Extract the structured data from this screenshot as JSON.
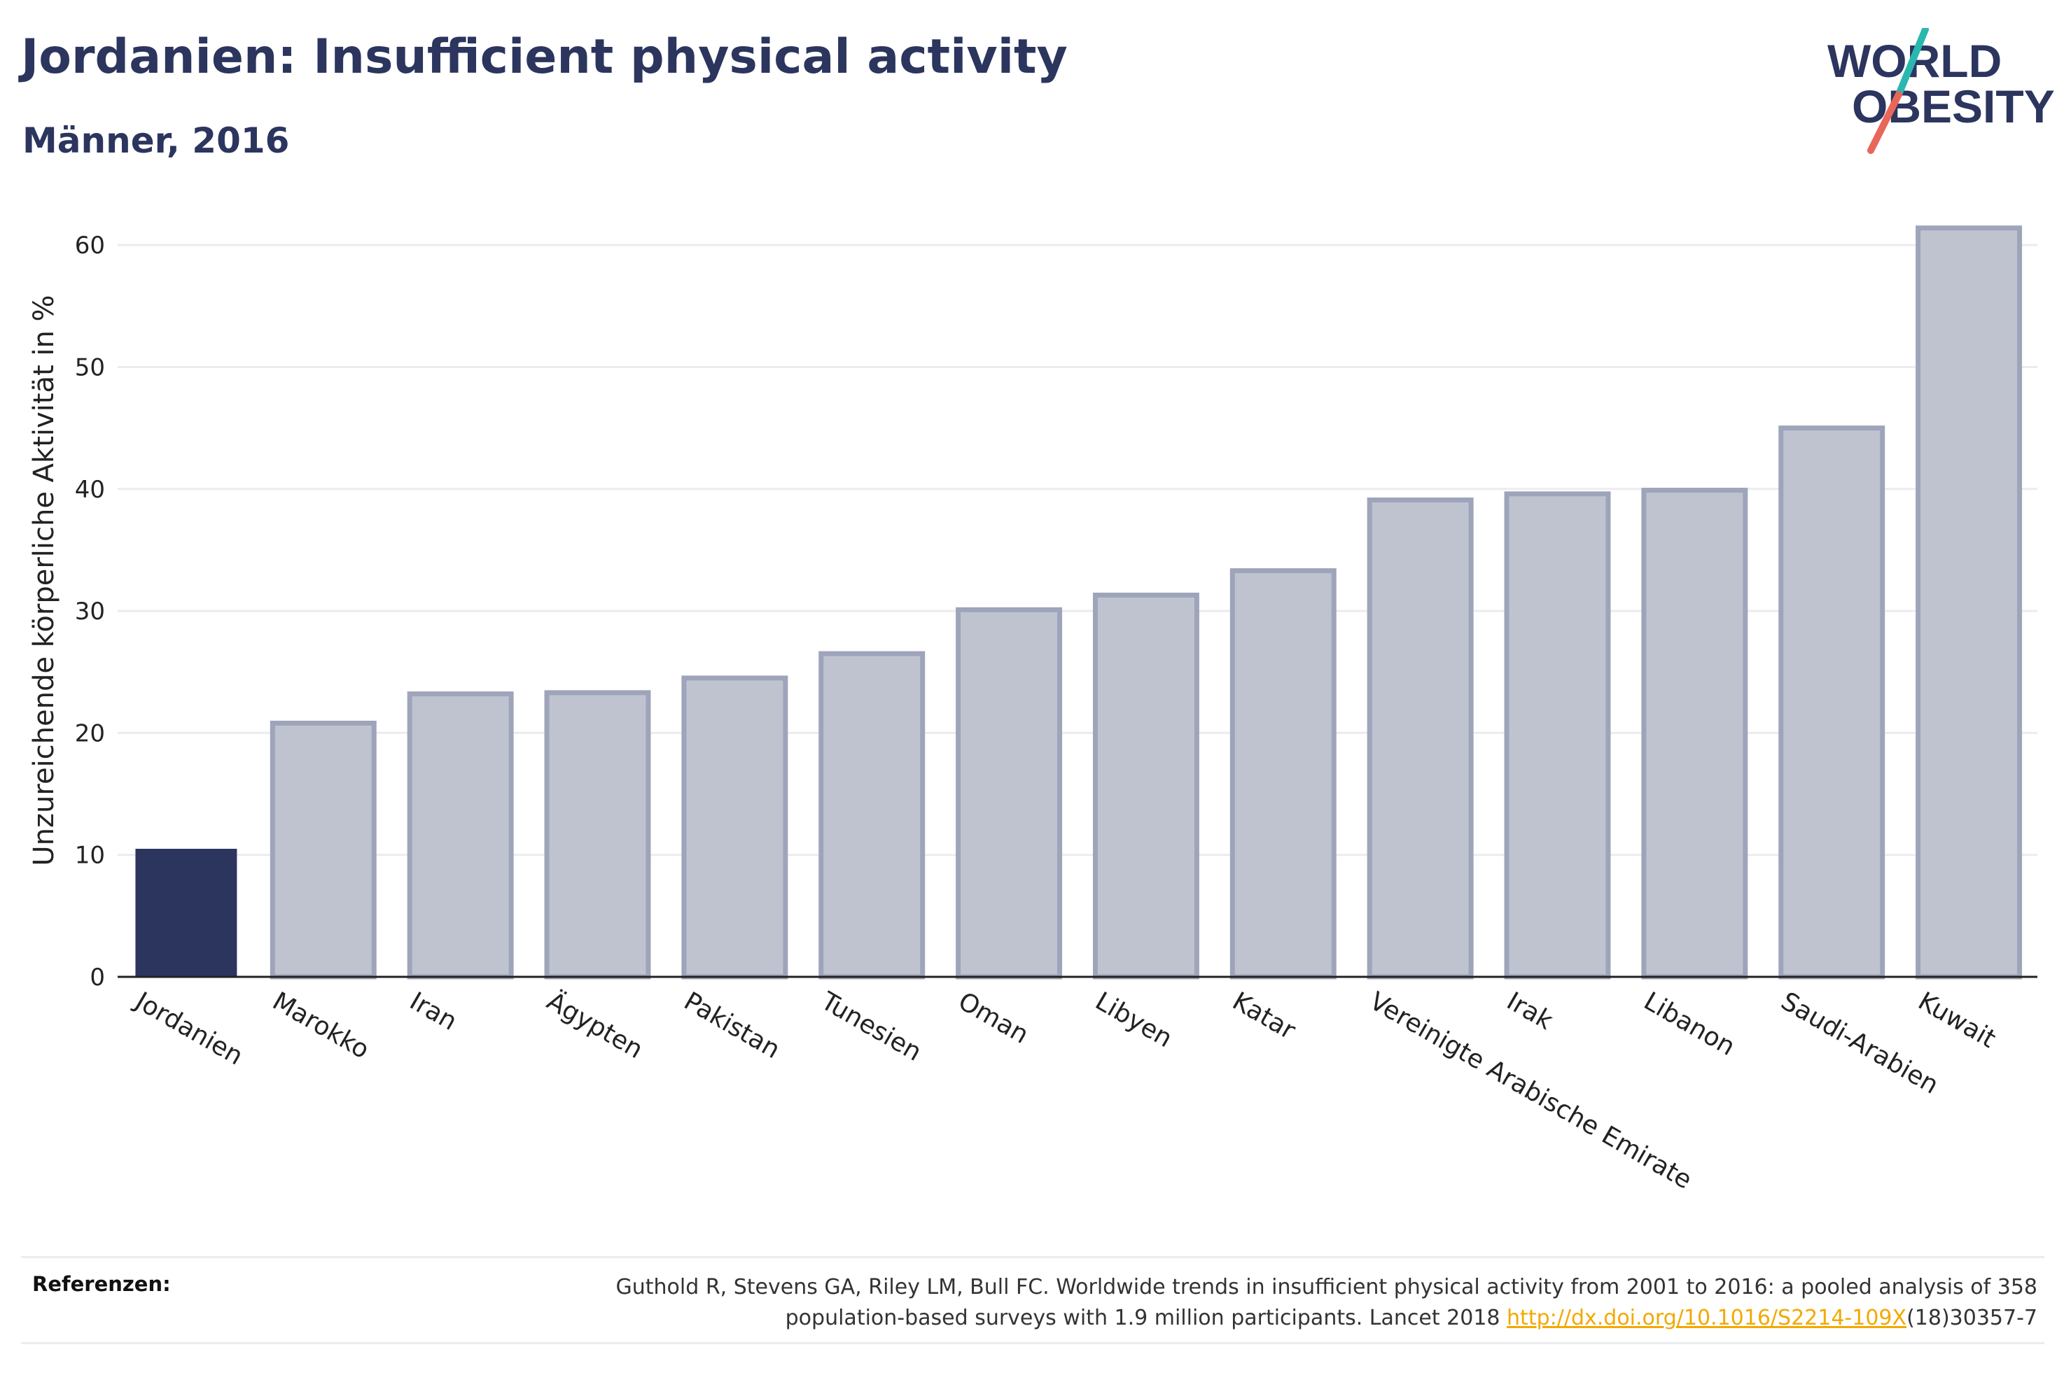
{
  "header": {
    "title": "Jordanien: Insufficient physical activity",
    "subtitle": "Männer, 2016"
  },
  "logo": {
    "line1": "WORLD",
    "line2": "OBESITY",
    "accent_teal": "#2ab7ae",
    "accent_coral": "#e8665a"
  },
  "colors": {
    "highlight": "#2b355e",
    "bar_fill": "#bfc3d0",
    "bar_stroke": "#9ea4ba",
    "grid": "#ececf0",
    "text": "#2b355e",
    "link": "#f2a900"
  },
  "chart_data": {
    "type": "bar",
    "ylabel": "Unzureichende körperliche Aktivität in %",
    "xlabel": "",
    "ylim": [
      0,
      65
    ],
    "yticks": [
      0,
      10,
      20,
      30,
      40,
      50,
      60
    ],
    "grid": true,
    "categories": [
      "Jordanien",
      "Marokko",
      "Iran",
      "Ägypten",
      "Pakistan",
      "Tunesien",
      "Oman",
      "Libyen",
      "Katar",
      "Vereinigte Arabische Emirate",
      "Irak",
      "Libanon",
      "Saudi-Arabien",
      "Kuwait"
    ],
    "values": [
      10.5,
      20.8,
      23.2,
      23.3,
      24.5,
      26.5,
      30.1,
      31.3,
      33.3,
      39.1,
      39.6,
      39.9,
      45.0,
      61.4
    ],
    "highlight_index": 0
  },
  "references": {
    "label": "Referenzen:",
    "text_before": "Guthold R, Stevens GA, Riley LM, Bull FC. Worldwide trends in insufficient physical activity from 2001 to 2016: a pooled analysis of 358 population-based surveys with 1.9 million participants. Lancet 2018 ",
    "link_text": "http://dx.doi.org/10.1016/S2214-109X",
    "text_after": "(18)30357-7"
  }
}
